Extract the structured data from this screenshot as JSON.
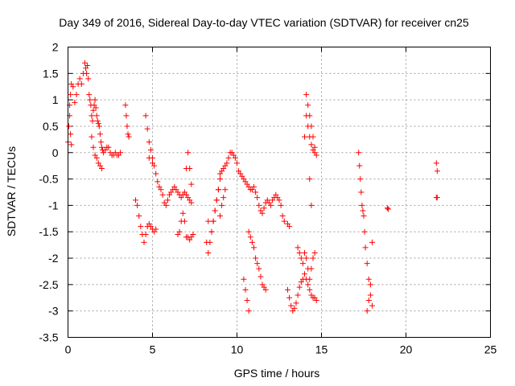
{
  "chart_data": {
    "type": "scatter",
    "title": "Day 349 of 2016, Sidereal Day-to-day VTEC variation (SDTVAR) for receiver cn25",
    "xlabel": "GPS time / hours",
    "ylabel": "SDTVAR / TECUs",
    "xlim": [
      0,
      25
    ],
    "ylim": [
      -3.5,
      2
    ],
    "grid": true,
    "marker": "+",
    "color": "#ff0000",
    "xticks": [
      "0",
      "5",
      "10",
      "15",
      "20",
      "25"
    ],
    "yticks": [
      "-3.5",
      "-3",
      "-2.5",
      "-2",
      "-1.5",
      "-1",
      "-0.5",
      "0",
      "0.5",
      "1",
      "1.5",
      "2"
    ],
    "series": [
      {
        "name": "SDTVAR",
        "x": [
          0.0,
          0.05,
          0.1,
          0.15,
          0.2,
          0.3,
          0.4,
          0.5,
          0.6,
          0.7,
          0.8,
          0.9,
          1.0,
          1.05,
          1.1,
          1.15,
          1.2,
          1.25,
          1.3,
          1.35,
          1.4,
          1.45,
          1.5,
          1.55,
          1.6,
          1.65,
          1.7,
          1.75,
          1.8,
          1.85,
          1.9,
          1.95,
          2.0,
          2.05,
          2.1,
          2.2,
          2.3,
          2.4,
          2.5,
          2.6,
          2.7,
          2.8,
          2.9,
          3.0,
          3.1,
          0.1,
          0.15,
          0.2,
          1.4,
          1.5,
          1.6,
          1.7,
          1.8,
          1.9,
          2.0,
          3.4,
          3.45,
          3.5,
          3.55,
          3.6,
          4.0,
          4.1,
          4.2,
          4.3,
          4.4,
          4.5,
          4.6,
          4.7,
          4.8,
          4.9,
          5.0,
          5.1,
          5.2,
          4.6,
          4.7,
          4.8,
          4.9,
          5.0,
          5.1,
          5.2,
          5.3,
          5.4,
          5.5,
          5.6,
          5.7,
          5.8,
          5.9,
          6.0,
          6.1,
          6.2,
          6.3,
          6.4,
          6.5,
          6.6,
          6.7,
          6.8,
          6.9,
          7.0,
          7.1,
          7.2,
          7.3,
          7.0,
          7.1,
          7.2,
          7.3,
          7.4,
          6.5,
          6.6,
          6.7,
          6.8,
          6.9,
          7.0,
          7.1,
          7.2,
          7.3,
          4.8,
          5.0,
          8.3,
          8.4,
          8.5,
          8.6,
          8.7,
          8.8,
          8.9,
          9.0,
          8.5,
          8.6,
          8.7,
          8.8,
          8.9,
          9.0,
          9.1,
          9.2,
          9.3,
          9.4,
          9.5,
          9.6,
          9.7,
          9.8,
          9.9,
          10.0,
          10.1,
          10.2,
          10.3,
          10.4,
          10.5,
          10.6,
          10.7,
          10.8,
          10.9,
          11.0,
          11.1,
          11.2,
          11.3,
          11.4,
          11.5,
          11.6,
          11.7,
          11.8,
          11.9,
          12.0,
          12.1,
          12.2,
          12.3,
          12.4,
          12.5,
          12.6,
          12.7,
          12.8,
          13.0,
          13.1,
          10.7,
          10.8,
          10.9,
          11.0,
          11.1,
          11.2,
          11.3,
          11.4,
          11.5,
          11.6,
          11.7,
          10.4,
          10.5,
          10.6,
          10.7,
          8.2,
          8.3,
          9.0,
          9.1,
          9.2,
          9.3,
          13.0,
          13.1,
          13.2,
          13.3,
          13.4,
          13.5,
          13.6,
          13.7,
          13.8,
          13.9,
          14.0,
          14.1,
          14.2,
          14.3,
          14.4,
          14.5,
          14.6,
          14.7,
          13.6,
          13.7,
          13.8,
          13.9,
          14.0,
          14.1,
          14.2,
          14.3,
          14.4,
          14.5,
          14.6,
          14.0,
          14.1,
          14.2,
          14.3,
          14.4,
          14.5,
          14.6,
          14.7,
          14.1,
          14.2,
          14.3,
          14.4,
          14.5,
          14.6,
          14.3,
          14.4,
          17.2,
          17.25,
          17.3,
          17.35,
          17.4,
          17.45,
          17.5,
          17.55,
          17.6,
          17.7,
          17.8,
          17.9,
          18.0,
          17.7,
          17.8,
          17.9,
          18.0,
          18.9,
          18.95,
          21.8,
          21.85,
          21.8,
          21.85
        ],
        "y": [
          0.2,
          0.5,
          0.9,
          1.1,
          1.3,
          1.25,
          0.95,
          1.1,
          1.3,
          1.4,
          1.3,
          1.5,
          1.7,
          1.6,
          1.5,
          1.65,
          1.4,
          1.1,
          1.0,
          0.9,
          0.7,
          0.6,
          0.8,
          0.9,
          1.0,
          0.85,
          0.7,
          0.6,
          0.55,
          0.5,
          0.35,
          0.2,
          0.1,
          0.05,
          0.0,
          0.05,
          0.1,
          0.1,
          0.0,
          -0.05,
          -0.05,
          0.0,
          -0.05,
          -0.05,
          0.0,
          0.7,
          0.35,
          0.15,
          0.3,
          0.1,
          -0.05,
          -0.1,
          -0.2,
          -0.25,
          -0.3,
          0.9,
          0.7,
          0.5,
          0.35,
          0.3,
          -0.9,
          -1.0,
          -1.2,
          -1.4,
          -1.55,
          -1.7,
          -1.55,
          -1.4,
          -1.35,
          -1.4,
          -1.45,
          -1.5,
          -1.45,
          0.7,
          0.45,
          0.2,
          0.05,
          -0.1,
          -0.25,
          -0.4,
          -0.55,
          -0.65,
          -0.7,
          -0.8,
          -0.95,
          -1.0,
          -0.9,
          -0.8,
          -0.75,
          -0.7,
          -0.65,
          -0.7,
          -0.75,
          -0.8,
          -0.85,
          -0.8,
          -0.75,
          -0.8,
          -0.85,
          -0.9,
          -0.95,
          -1.6,
          -1.6,
          -1.65,
          -1.6,
          -1.55,
          -1.55,
          -1.5,
          -1.3,
          -1.15,
          -1.3,
          -0.3,
          0.0,
          -0.3,
          -0.6,
          -0.1,
          -0.2,
          -1.9,
          -1.7,
          -1.5,
          -1.3,
          -1.1,
          -0.9,
          -0.7,
          -0.4,
          -1.5,
          -1.3,
          -1.1,
          -0.9,
          -0.7,
          -0.5,
          -0.35,
          -0.3,
          -0.25,
          -0.2,
          -0.1,
          0.0,
          0.0,
          -0.05,
          -0.1,
          -0.2,
          -0.35,
          -0.4,
          -0.45,
          -0.5,
          -0.55,
          -0.6,
          -0.65,
          -0.7,
          -0.7,
          -0.65,
          -0.75,
          -0.85,
          -1.0,
          -1.1,
          -1.15,
          -1.05,
          -0.95,
          -0.9,
          -0.95,
          -1.0,
          -0.9,
          -0.85,
          -0.8,
          -0.85,
          -0.9,
          -1.0,
          -1.2,
          -1.3,
          -1.35,
          -1.4,
          -1.5,
          -1.6,
          -1.7,
          -1.8,
          -2.0,
          -2.1,
          -2.2,
          -2.35,
          -2.5,
          -2.55,
          -2.6,
          -2.4,
          -2.6,
          -2.8,
          -3.0,
          -1.7,
          -1.3,
          -1.2,
          -1.0,
          -0.85,
          -0.7,
          -2.6,
          -2.75,
          -2.9,
          -3.0,
          -2.95,
          -2.85,
          -2.7,
          -2.55,
          -2.45,
          -2.4,
          -2.3,
          -2.4,
          -2.5,
          -2.6,
          -2.7,
          -2.75,
          -2.75,
          -2.8,
          -1.8,
          -1.9,
          -2.0,
          -2.1,
          -1.9,
          -2.0,
          -2.2,
          -2.4,
          -2.2,
          -2.0,
          -1.9,
          0.3,
          0.7,
          0.5,
          0.3,
          0.15,
          0.05,
          0.0,
          -0.05,
          1.1,
          0.9,
          0.7,
          0.5,
          0.3,
          0.1,
          -0.5,
          -1.0,
          0.0,
          -0.25,
          -0.5,
          -0.75,
          -1.0,
          -1.1,
          -1.2,
          -1.5,
          -1.8,
          -2.1,
          -2.4,
          -2.7,
          -2.9,
          -3.0,
          -2.8,
          -2.5,
          -1.7,
          -1.05,
          -1.07,
          -0.2,
          -0.35,
          -0.85,
          -0.85
        ]
      }
    ]
  }
}
